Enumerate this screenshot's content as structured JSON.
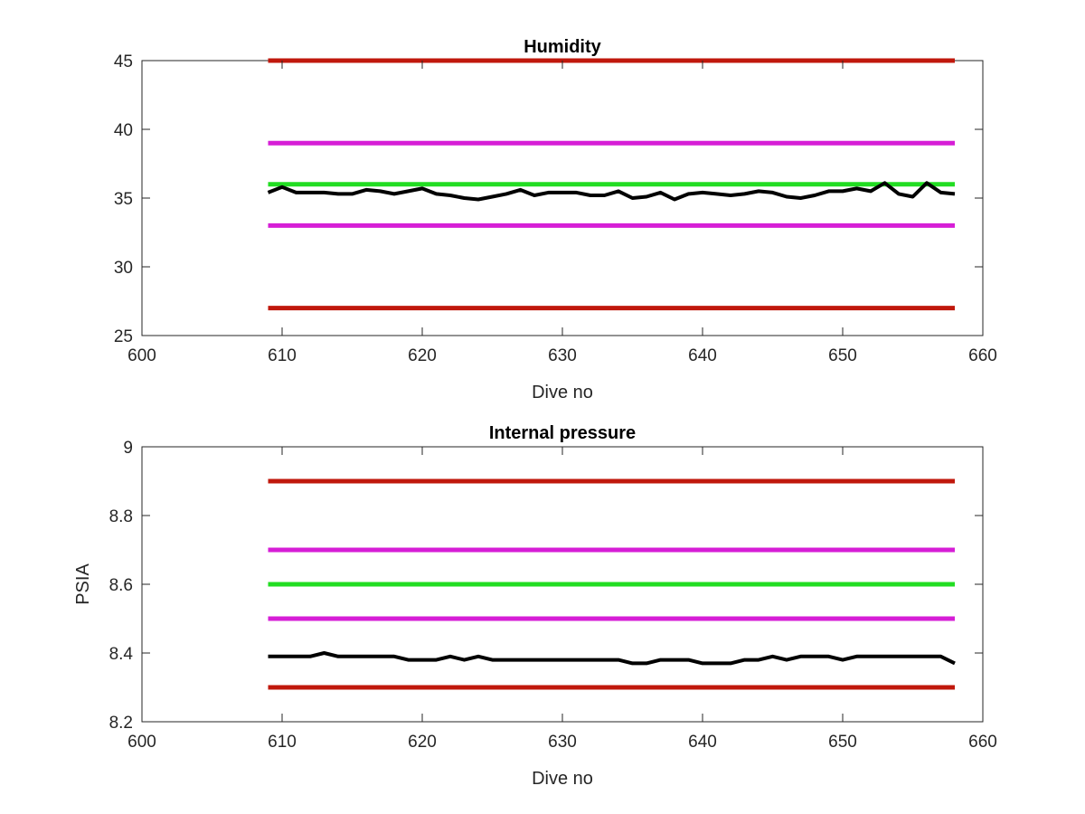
{
  "chart_data": [
    {
      "type": "line",
      "title": "Humidity",
      "xlabel": "Dive no",
      "ylabel": "",
      "xlim": [
        600,
        660
      ],
      "ylim": [
        25,
        45
      ],
      "xticks": [
        600,
        610,
        620,
        630,
        640,
        650,
        660
      ],
      "yticks": [
        25,
        30,
        35,
        40,
        45
      ],
      "xtick_labels": [
        "600",
        "610",
        "620",
        "630",
        "640",
        "650",
        "660"
      ],
      "ytick_labels": [
        "25",
        "30",
        "35",
        "40",
        "45"
      ],
      "grid": false,
      "series": [
        {
          "color": "#c0180c",
          "x": [
            609,
            658
          ],
          "y": [
            45,
            45
          ]
        },
        {
          "color": "#c0180c",
          "x": [
            609,
            658
          ],
          "y": [
            27,
            27
          ]
        },
        {
          "color": "#d61ed6",
          "x": [
            609,
            658
          ],
          "y": [
            39,
            39
          ]
        },
        {
          "color": "#d61ed6",
          "x": [
            609,
            658
          ],
          "y": [
            33,
            33
          ]
        },
        {
          "color": "#22dd22",
          "x": [
            609,
            658
          ],
          "y": [
            36,
            36
          ]
        },
        {
          "color": "#000000",
          "x": [
            609,
            610,
            611,
            612,
            613,
            614,
            615,
            616,
            617,
            618,
            619,
            620,
            621,
            622,
            623,
            624,
            625,
            626,
            627,
            628,
            629,
            630,
            631,
            632,
            633,
            634,
            635,
            636,
            637,
            638,
            639,
            640,
            641,
            642,
            643,
            644,
            645,
            646,
            647,
            648,
            649,
            650,
            651,
            652,
            653,
            654,
            655,
            656,
            657,
            658
          ],
          "y": [
            35.4,
            35.8,
            35.4,
            35.4,
            35.4,
            35.3,
            35.3,
            35.6,
            35.5,
            35.3,
            35.5,
            35.7,
            35.3,
            35.2,
            35.0,
            34.9,
            35.1,
            35.3,
            35.6,
            35.2,
            35.4,
            35.4,
            35.4,
            35.2,
            35.2,
            35.5,
            35.0,
            35.1,
            35.4,
            34.9,
            35.3,
            35.4,
            35.3,
            35.2,
            35.3,
            35.5,
            35.4,
            35.1,
            35.0,
            35.2,
            35.5,
            35.5,
            35.7,
            35.5,
            36.1,
            35.3,
            35.1,
            36.1,
            35.4,
            35.3
          ]
        }
      ]
    },
    {
      "type": "line",
      "title": "Internal pressure",
      "xlabel": "Dive no",
      "ylabel": "PSIA",
      "xlim": [
        600,
        660
      ],
      "ylim": [
        8.2,
        9.0
      ],
      "xticks": [
        600,
        610,
        620,
        630,
        640,
        650,
        660
      ],
      "yticks": [
        8.2,
        8.4,
        8.6,
        8.8,
        9.0
      ],
      "xtick_labels": [
        "600",
        "610",
        "620",
        "630",
        "640",
        "650",
        "660"
      ],
      "ytick_labels": [
        "8.2",
        "8.4",
        "8.6",
        "8.8",
        "9"
      ],
      "grid": false,
      "series": [
        {
          "color": "#c0180c",
          "x": [
            609,
            658
          ],
          "y": [
            8.9,
            8.9
          ]
        },
        {
          "color": "#c0180c",
          "x": [
            609,
            658
          ],
          "y": [
            8.3,
            8.3
          ]
        },
        {
          "color": "#d61ed6",
          "x": [
            609,
            658
          ],
          "y": [
            8.7,
            8.7
          ]
        },
        {
          "color": "#d61ed6",
          "x": [
            609,
            658
          ],
          "y": [
            8.5,
            8.5
          ]
        },
        {
          "color": "#22dd22",
          "x": [
            609,
            658
          ],
          "y": [
            8.6,
            8.6
          ]
        },
        {
          "color": "#000000",
          "x": [
            609,
            610,
            611,
            612,
            613,
            614,
            615,
            616,
            617,
            618,
            619,
            620,
            621,
            622,
            623,
            624,
            625,
            626,
            627,
            628,
            629,
            630,
            631,
            632,
            633,
            634,
            635,
            636,
            637,
            638,
            639,
            640,
            641,
            642,
            643,
            644,
            645,
            646,
            647,
            648,
            649,
            650,
            651,
            652,
            653,
            654,
            655,
            656,
            657,
            658
          ],
          "y": [
            8.39,
            8.39,
            8.39,
            8.39,
            8.4,
            8.39,
            8.39,
            8.39,
            8.39,
            8.39,
            8.38,
            8.38,
            8.38,
            8.39,
            8.38,
            8.39,
            8.38,
            8.38,
            8.38,
            8.38,
            8.38,
            8.38,
            8.38,
            8.38,
            8.38,
            8.38,
            8.37,
            8.37,
            8.38,
            8.38,
            8.38,
            8.37,
            8.37,
            8.37,
            8.38,
            8.38,
            8.39,
            8.38,
            8.39,
            8.39,
            8.39,
            8.38,
            8.39,
            8.39,
            8.39,
            8.39,
            8.39,
            8.39,
            8.39,
            8.37
          ]
        }
      ]
    }
  ]
}
